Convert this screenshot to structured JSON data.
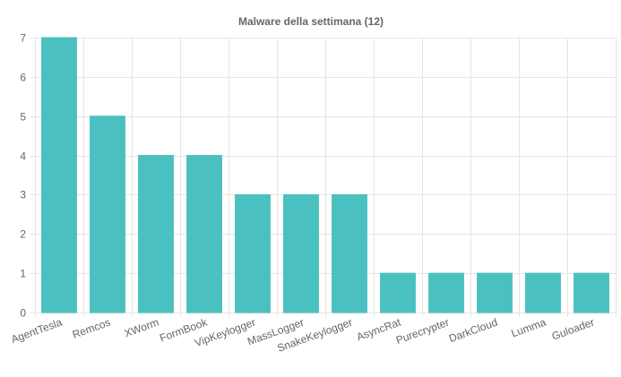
{
  "chart_data": {
    "type": "bar",
    "title": "Malware della settimana (12)",
    "categories": [
      "AgentTesla",
      "Remcos",
      "XWorm",
      "FormBook",
      "VipKeylogger",
      "MassLogger",
      "SnakeKeylogger",
      "AsyncRat",
      "Purecrypter",
      "DarkCloud",
      "Lumma",
      "Guloader"
    ],
    "values": [
      7,
      5,
      4,
      4,
      3,
      3,
      3,
      1,
      1,
      1,
      1,
      1
    ],
    "xlabel": "",
    "ylabel": "",
    "ylim": [
      0,
      7
    ],
    "yticks": [
      0,
      1,
      2,
      3,
      4,
      5,
      6,
      7
    ],
    "grid": true,
    "legend": "none",
    "bar_color": "#4bc0c0",
    "bar_border_color": "#4bc0c0",
    "grid_color": "#e5e5e5",
    "text_color": "#666666"
  }
}
